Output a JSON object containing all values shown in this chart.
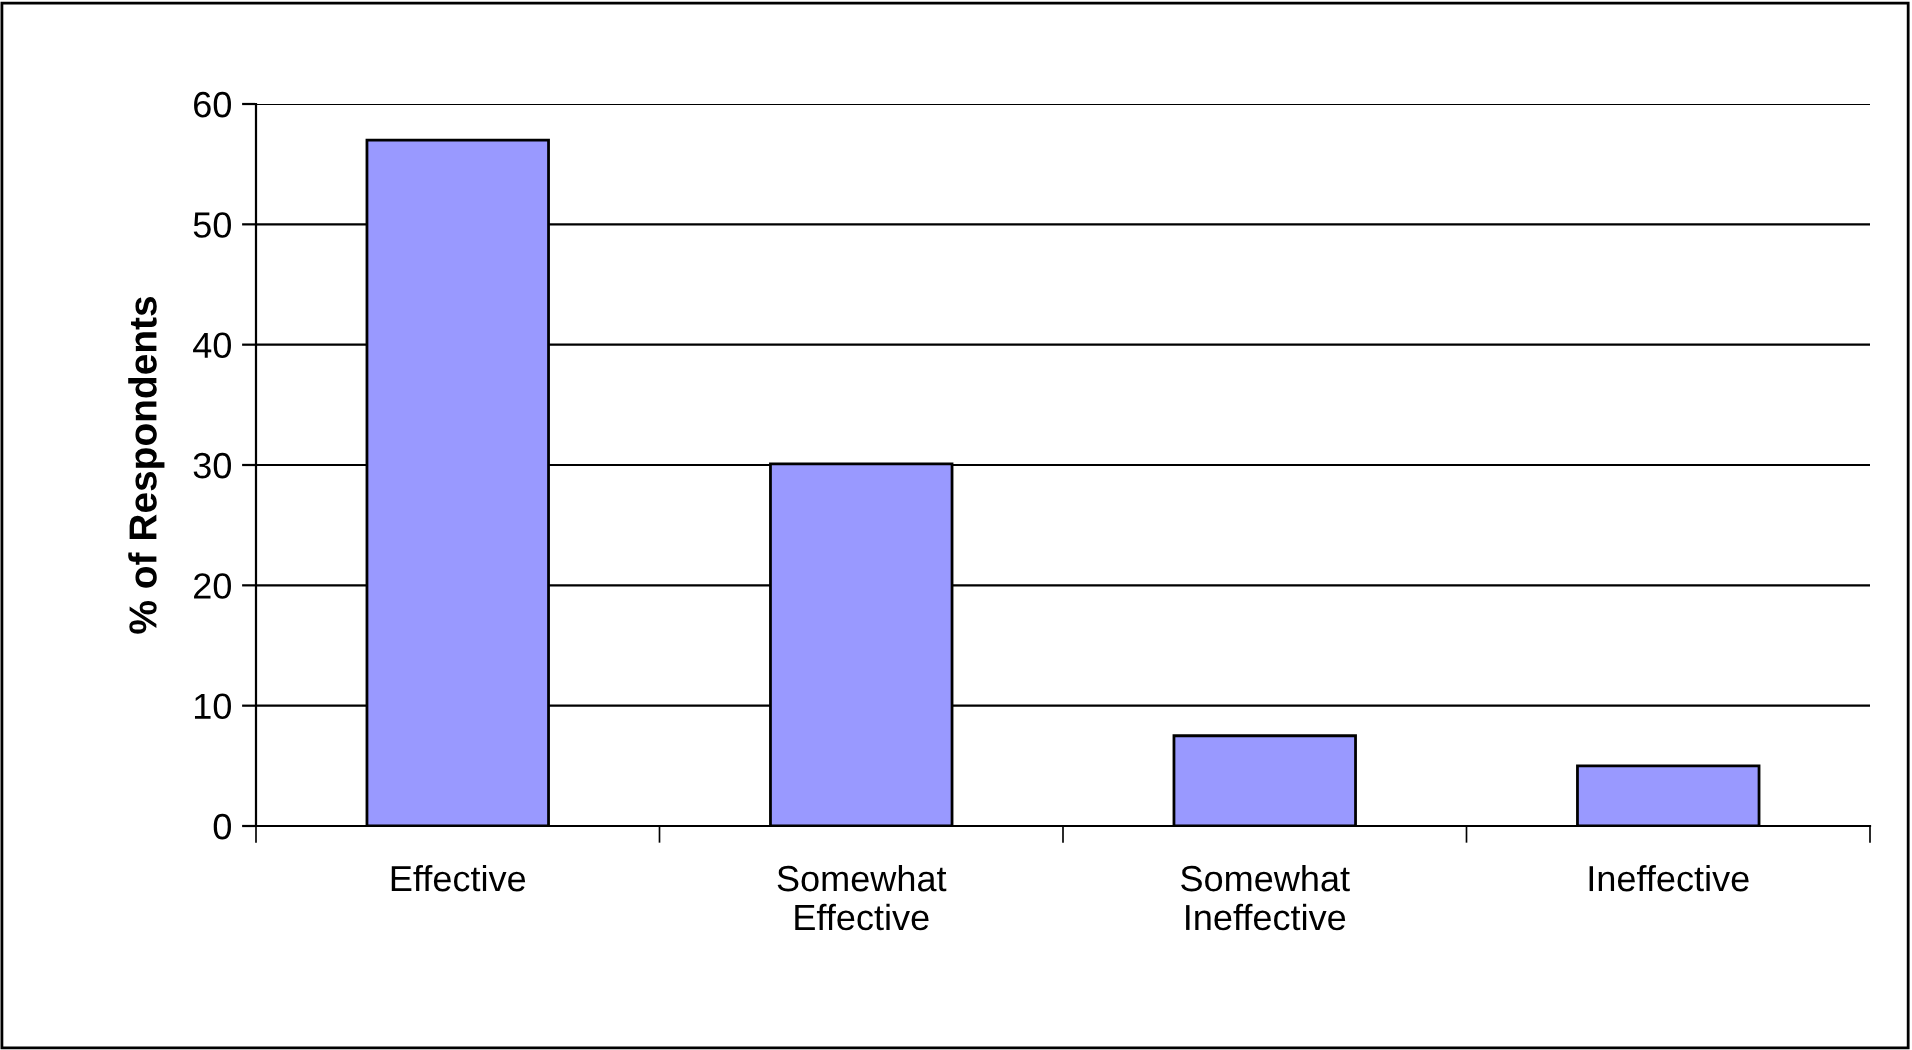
{
  "chart_data": {
    "type": "bar",
    "ylabel": "% of Respondents",
    "categories": [
      "Effective",
      "Somewhat\nEffective",
      "Somewhat\nIneffective",
      "Ineffective"
    ],
    "values": [
      57,
      30.1,
      7.5,
      5
    ],
    "color": "#9999ff",
    "ylim": [
      0,
      60
    ],
    "yticks": [
      0,
      10,
      20,
      30,
      40,
      50,
      60
    ],
    "grid": "y"
  }
}
